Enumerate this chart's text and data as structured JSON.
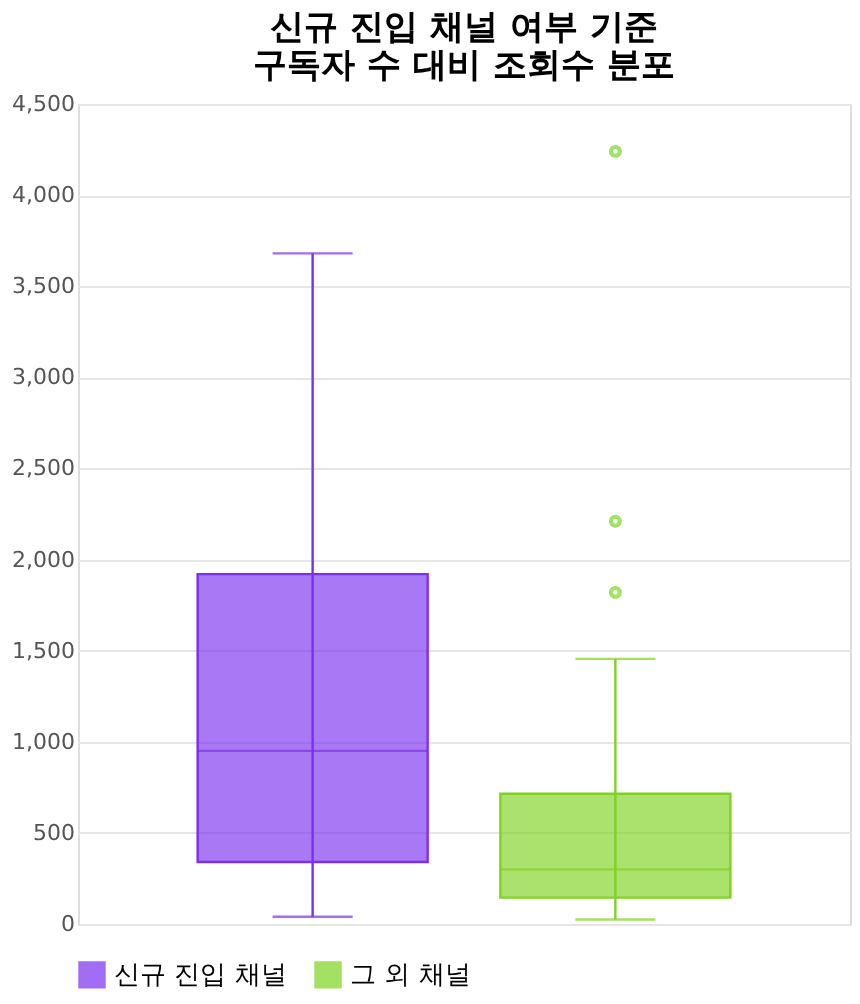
{
  "chart_data": {
    "type": "box",
    "title": "신규 진입 채널 여부 기준\n구독자 수 대비 조회수 분포",
    "categories": [
      null,
      null
    ],
    "series": [
      {
        "name": "신규 진입 채널",
        "color": "#7b2ff0",
        "boxes": [
          {
            "low": 40,
            "q1": 340,
            "median": 950,
            "q3": 1920,
            "high": 3680
          },
          null
        ]
      },
      {
        "name": "그 외 채널",
        "color": "#7ed321",
        "boxes": [
          null,
          {
            "low": 25,
            "q1": 145,
            "median": 300,
            "q3": 715,
            "high": 1455,
            "outliers": [
              1820,
              2210,
              4240
            ]
          }
        ]
      }
    ],
    "ylim": [
      0,
      4500
    ],
    "yticks": [
      0,
      500,
      {
        "value": 1000,
        "label": "1,000"
      },
      {
        "value": 1500,
        "label": "1,500"
      },
      {
        "value": 2000,
        "label": "2,000"
      },
      {
        "value": 2500,
        "label": "2,500"
      },
      {
        "value": 3000,
        "label": "3,000"
      },
      {
        "value": 3500,
        "label": "3,500"
      },
      {
        "value": 4000,
        "label": "4,000"
      },
      {
        "value": 4500,
        "label": "4,500"
      }
    ],
    "grid": "y",
    "legend": "bottom",
    "tick_labels": "y"
  }
}
